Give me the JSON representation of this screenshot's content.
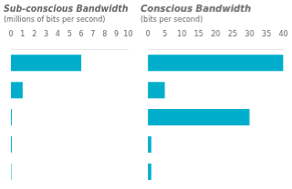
{
  "chart_data": [
    {
      "type": "bar",
      "orientation": "horizontal",
      "title": "Sub-conscious Bandwidth",
      "subtitle": "(millions of bits per second)",
      "categories": [
        null,
        null,
        null,
        null,
        null
      ],
      "values": [
        6.0,
        1.0,
        0.08,
        0.08,
        0.04
      ],
      "color": "#00AECB",
      "xlim": [
        0,
        10
      ],
      "xticks": [
        0,
        1,
        2,
        3,
        4,
        5,
        6,
        7,
        8,
        9,
        10
      ],
      "grid": false,
      "tick_labels": "x"
    },
    {
      "type": "bar",
      "orientation": "horizontal",
      "title": "Conscious Bandwidth",
      "subtitle": "(bits per second)",
      "categories": [
        null,
        null,
        null,
        null,
        null
      ],
      "values": [
        40.0,
        5.0,
        30.0,
        1.0,
        1.0
      ],
      "color": "#00AECB",
      "xlim": [
        0,
        40
      ],
      "xticks": [
        0,
        5,
        10,
        15,
        20,
        25,
        30,
        35,
        40
      ],
      "grid": false,
      "tick_labels": "x"
    }
  ]
}
